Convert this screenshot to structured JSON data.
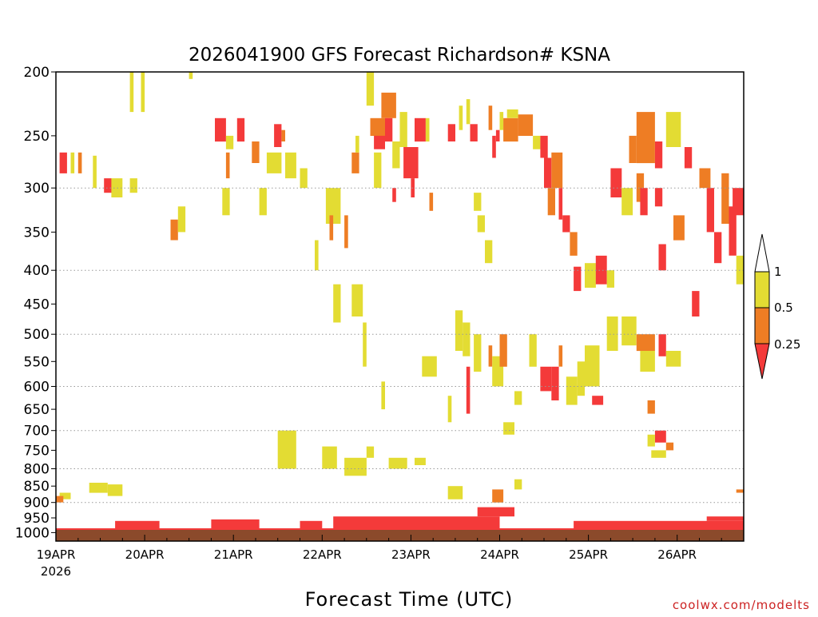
{
  "chart_data": {
    "type": "heatmap",
    "title": "2026041900 GFS Forecast Richardson# KSNA",
    "xlabel": "Forecast Time (UTC)",
    "ylabel": "",
    "credit": "coolwx.com/modelts",
    "y_scale": "log",
    "ylim": [
      1030,
      200
    ],
    "y_ticks": [
      200,
      250,
      300,
      350,
      400,
      450,
      500,
      550,
      600,
      650,
      700,
      750,
      800,
      850,
      900,
      950,
      1000
    ],
    "y_gridlines": [
      300,
      400,
      500,
      600,
      700,
      800,
      900
    ],
    "xlim": [
      "2026-04-19 00Z",
      "2026-04-26 18Z"
    ],
    "x_ticks": [
      {
        "label": "19APR",
        "sublabel": "2026",
        "hour": 0
      },
      {
        "label": "20APR",
        "hour": 24
      },
      {
        "label": "21APR",
        "hour": 48
      },
      {
        "label": "22APR",
        "hour": 72
      },
      {
        "label": "23APR",
        "hour": 96
      },
      {
        "label": "24APR",
        "hour": 120
      },
      {
        "label": "25APR",
        "hour": 144
      },
      {
        "label": "26APR",
        "hour": 168
      }
    ],
    "x_hours_max": 186,
    "colorbar": {
      "labels": [
        "1",
        "0.5",
        "0.25"
      ],
      "bins": [
        {
          "range": "0.5-1",
          "color": "#e3dc33"
        },
        {
          "range": "0.25-0.5",
          "color": "#ee7d24"
        },
        {
          "range": "<0.25",
          "color": "#f43a3a"
        }
      ]
    },
    "colors": {
      "yellow": "#e3dc33",
      "orange": "#ee7d24",
      "red": "#f43a3a",
      "ground": "#8b4a2b"
    },
    "cells": [
      {
        "h0": 1,
        "h1": 3,
        "p0": 265,
        "p1": 285,
        "c": "red"
      },
      {
        "h0": 4,
        "h1": 5,
        "p0": 265,
        "p1": 285,
        "c": "yellow"
      },
      {
        "h0": 6,
        "h1": 7,
        "p0": 265,
        "p1": 285,
        "c": "orange"
      },
      {
        "h0": 10,
        "h1": 11,
        "p0": 268,
        "p1": 300,
        "c": "yellow"
      },
      {
        "h0": 13,
        "h1": 15,
        "p0": 290,
        "p1": 305,
        "c": "red"
      },
      {
        "h0": 15,
        "h1": 18,
        "p0": 290,
        "p1": 310,
        "c": "yellow"
      },
      {
        "h0": 20,
        "h1": 22,
        "p0": 290,
        "p1": 305,
        "c": "yellow"
      },
      {
        "h0": 20,
        "h1": 21,
        "p0": 200,
        "p1": 230,
        "c": "yellow"
      },
      {
        "h0": 23,
        "h1": 24,
        "p0": 200,
        "p1": 230,
        "c": "yellow"
      },
      {
        "h0": 31,
        "h1": 33,
        "p0": 335,
        "p1": 360,
        "c": "orange"
      },
      {
        "h0": 33,
        "h1": 35,
        "p0": 320,
        "p1": 350,
        "c": "yellow"
      },
      {
        "h0": 36,
        "h1": 37,
        "p0": 200,
        "p1": 205,
        "c": "yellow"
      },
      {
        "h0": 43,
        "h1": 46,
        "p0": 235,
        "p1": 255,
        "c": "red"
      },
      {
        "h0": 46,
        "h1": 48,
        "p0": 250,
        "p1": 262,
        "c": "yellow"
      },
      {
        "h0": 46,
        "h1": 47,
        "p0": 265,
        "p1": 290,
        "c": "orange"
      },
      {
        "h0": 49,
        "h1": 51,
        "p0": 235,
        "p1": 255,
        "c": "red"
      },
      {
        "h0": 53,
        "h1": 55,
        "p0": 255,
        "p1": 275,
        "c": "orange"
      },
      {
        "h0": 57,
        "h1": 61,
        "p0": 265,
        "p1": 285,
        "c": "yellow"
      },
      {
        "h0": 59,
        "h1": 61,
        "p0": 240,
        "p1": 260,
        "c": "red"
      },
      {
        "h0": 61,
        "h1": 62,
        "p0": 245,
        "p1": 255,
        "c": "orange"
      },
      {
        "h0": 62,
        "h1": 65,
        "p0": 265,
        "p1": 290,
        "c": "yellow"
      },
      {
        "h0": 66,
        "h1": 68,
        "p0": 280,
        "p1": 300,
        "c": "yellow"
      },
      {
        "h0": 73,
        "h1": 77,
        "p0": 300,
        "p1": 340,
        "c": "yellow"
      },
      {
        "h0": 74,
        "h1": 75,
        "p0": 330,
        "p1": 360,
        "c": "orange"
      },
      {
        "h0": 78,
        "h1": 79,
        "p0": 330,
        "p1": 370,
        "c": "orange"
      },
      {
        "h0": 80,
        "h1": 82,
        "p0": 265,
        "p1": 285,
        "c": "orange"
      },
      {
        "h0": 81,
        "h1": 82,
        "p0": 250,
        "p1": 265,
        "c": "yellow"
      },
      {
        "h0": 84,
        "h1": 86,
        "p0": 200,
        "p1": 225,
        "c": "yellow"
      },
      {
        "h0": 85,
        "h1": 89,
        "p0": 235,
        "p1": 250,
        "c": "orange"
      },
      {
        "h0": 86,
        "h1": 89,
        "p0": 250,
        "p1": 262,
        "c": "red"
      },
      {
        "h0": 86,
        "h1": 88,
        "p0": 265,
        "p1": 300,
        "c": "yellow"
      },
      {
        "h0": 88,
        "h1": 92,
        "p0": 215,
        "p1": 235,
        "c": "orange"
      },
      {
        "h0": 89,
        "h1": 91,
        "p0": 235,
        "p1": 255,
        "c": "red"
      },
      {
        "h0": 91,
        "h1": 93,
        "p0": 255,
        "p1": 280,
        "c": "yellow"
      },
      {
        "h0": 91,
        "h1": 92,
        "p0": 300,
        "p1": 315,
        "c": "red"
      },
      {
        "h0": 93,
        "h1": 95,
        "p0": 230,
        "p1": 260,
        "c": "yellow"
      },
      {
        "h0": 94,
        "h1": 98,
        "p0": 260,
        "p1": 290,
        "c": "red"
      },
      {
        "h0": 96,
        "h1": 97,
        "p0": 290,
        "p1": 310,
        "c": "red"
      },
      {
        "h0": 97,
        "h1": 100,
        "p0": 235,
        "p1": 255,
        "c": "red"
      },
      {
        "h0": 100,
        "h1": 101,
        "p0": 235,
        "p1": 255,
        "c": "yellow"
      },
      {
        "h0": 101,
        "h1": 102,
        "p0": 305,
        "p1": 325,
        "c": "orange"
      },
      {
        "h0": 106,
        "h1": 108,
        "p0": 240,
        "p1": 255,
        "c": "red"
      },
      {
        "h0": 109,
        "h1": 110,
        "p0": 225,
        "p1": 245,
        "c": "yellow"
      },
      {
        "h0": 111,
        "h1": 112,
        "p0": 220,
        "p1": 240,
        "c": "yellow"
      },
      {
        "h0": 112,
        "h1": 114,
        "p0": 240,
        "p1": 255,
        "c": "red"
      },
      {
        "h0": 113,
        "h1": 115,
        "p0": 305,
        "p1": 325,
        "c": "yellow"
      },
      {
        "h0": 114,
        "h1": 116,
        "p0": 330,
        "p1": 350,
        "c": "yellow"
      },
      {
        "h0": 116,
        "h1": 118,
        "p0": 360,
        "p1": 390,
        "c": "yellow"
      },
      {
        "h0": 117,
        "h1": 118,
        "p0": 225,
        "p1": 245,
        "c": "orange"
      },
      {
        "h0": 118,
        "h1": 119,
        "p0": 250,
        "p1": 270,
        "c": "red"
      },
      {
        "h0": 119,
        "h1": 120,
        "p0": 245,
        "p1": 255,
        "c": "red"
      },
      {
        "h0": 120,
        "h1": 121,
        "p0": 230,
        "p1": 245,
        "c": "yellow"
      },
      {
        "h0": 121,
        "h1": 125,
        "p0": 235,
        "p1": 255,
        "c": "orange"
      },
      {
        "h0": 122,
        "h1": 125,
        "p0": 228,
        "p1": 235,
        "c": "yellow"
      },
      {
        "h0": 125,
        "h1": 129,
        "p0": 232,
        "p1": 250,
        "c": "orange"
      },
      {
        "h0": 129,
        "h1": 131,
        "p0": 250,
        "p1": 262,
        "c": "yellow"
      },
      {
        "h0": 131,
        "h1": 133,
        "p0": 250,
        "p1": 270,
        "c": "red"
      },
      {
        "h0": 132,
        "h1": 134,
        "p0": 270,
        "p1": 300,
        "c": "red"
      },
      {
        "h0": 133,
        "h1": 135,
        "p0": 300,
        "p1": 330,
        "c": "orange"
      },
      {
        "h0": 134,
        "h1": 137,
        "p0": 265,
        "p1": 300,
        "c": "orange"
      },
      {
        "h0": 136,
        "h1": 137,
        "p0": 300,
        "p1": 335,
        "c": "red"
      },
      {
        "h0": 137,
        "h1": 139,
        "p0": 330,
        "p1": 350,
        "c": "red"
      },
      {
        "h0": 139,
        "h1": 141,
        "p0": 350,
        "p1": 380,
        "c": "orange"
      },
      {
        "h0": 140,
        "h1": 142,
        "p0": 395,
        "p1": 430,
        "c": "red"
      },
      {
        "h0": 143,
        "h1": 146,
        "p0": 390,
        "p1": 425,
        "c": "yellow"
      },
      {
        "h0": 146,
        "h1": 149,
        "p0": 380,
        "p1": 420,
        "c": "red"
      },
      {
        "h0": 149,
        "h1": 151,
        "p0": 400,
        "p1": 425,
        "c": "yellow"
      },
      {
        "h0": 150,
        "h1": 153,
        "p0": 280,
        "p1": 310,
        "c": "red"
      },
      {
        "h0": 153,
        "h1": 156,
        "p0": 300,
        "p1": 330,
        "c": "yellow"
      },
      {
        "h0": 155,
        "h1": 157,
        "p0": 250,
        "p1": 275,
        "c": "orange"
      },
      {
        "h0": 157,
        "h1": 162,
        "p0": 230,
        "p1": 275,
        "c": "orange"
      },
      {
        "h0": 157,
        "h1": 159,
        "p0": 285,
        "p1": 315,
        "c": "orange"
      },
      {
        "h0": 158,
        "h1": 160,
        "p0": 300,
        "p1": 330,
        "c": "red"
      },
      {
        "h0": 162,
        "h1": 164,
        "p0": 255,
        "p1": 280,
        "c": "red"
      },
      {
        "h0": 162,
        "h1": 164,
        "p0": 300,
        "p1": 320,
        "c": "red"
      },
      {
        "h0": 163,
        "h1": 165,
        "p0": 365,
        "p1": 400,
        "c": "red"
      },
      {
        "h0": 165,
        "h1": 169,
        "p0": 230,
        "p1": 260,
        "c": "yellow"
      },
      {
        "h0": 167,
        "h1": 170,
        "p0": 330,
        "p1": 360,
        "c": "orange"
      },
      {
        "h0": 170,
        "h1": 172,
        "p0": 260,
        "p1": 280,
        "c": "red"
      },
      {
        "h0": 172,
        "h1": 174,
        "p0": 430,
        "p1": 470,
        "c": "red"
      },
      {
        "h0": 174,
        "h1": 177,
        "p0": 280,
        "p1": 300,
        "c": "orange"
      },
      {
        "h0": 176,
        "h1": 178,
        "p0": 300,
        "p1": 350,
        "c": "red"
      },
      {
        "h0": 178,
        "h1": 180,
        "p0": 350,
        "p1": 390,
        "c": "red"
      },
      {
        "h0": 180,
        "h1": 182,
        "p0": 285,
        "p1": 340,
        "c": "orange"
      },
      {
        "h0": 182,
        "h1": 184,
        "p0": 320,
        "p1": 380,
        "c": "red"
      },
      {
        "h0": 184,
        "h1": 186,
        "p0": 380,
        "p1": 420,
        "c": "yellow"
      },
      {
        "h0": 183,
        "h1": 186,
        "p0": 300,
        "p1": 330,
        "c": "red"
      },
      {
        "h0": 45,
        "h1": 47,
        "p0": 300,
        "p1": 330,
        "c": "yellow"
      },
      {
        "h0": 55,
        "h1": 57,
        "p0": 300,
        "p1": 330,
        "c": "yellow"
      },
      {
        "h0": 70,
        "h1": 71,
        "p0": 360,
        "p1": 400,
        "c": "yellow"
      },
      {
        "h0": 75,
        "h1": 77,
        "p0": 420,
        "p1": 480,
        "c": "yellow"
      },
      {
        "h0": 80,
        "h1": 83,
        "p0": 420,
        "p1": 470,
        "c": "yellow"
      },
      {
        "h0": 83,
        "h1": 84,
        "p0": 480,
        "p1": 560,
        "c": "yellow"
      },
      {
        "h0": 88,
        "h1": 89,
        "p0": 590,
        "p1": 650,
        "c": "yellow"
      },
      {
        "h0": 99,
        "h1": 103,
        "p0": 540,
        "p1": 580,
        "c": "yellow"
      },
      {
        "h0": 106,
        "h1": 107,
        "p0": 620,
        "p1": 680,
        "c": "yellow"
      },
      {
        "h0": 108,
        "h1": 110,
        "p0": 460,
        "p1": 530,
        "c": "yellow"
      },
      {
        "h0": 110,
        "h1": 112,
        "p0": 480,
        "p1": 540,
        "c": "yellow"
      },
      {
        "h0": 111,
        "h1": 112,
        "p0": 560,
        "p1": 660,
        "c": "red"
      },
      {
        "h0": 113,
        "h1": 115,
        "p0": 500,
        "p1": 570,
        "c": "yellow"
      },
      {
        "h0": 117,
        "h1": 118,
        "p0": 520,
        "p1": 560,
        "c": "orange"
      },
      {
        "h0": 118,
        "h1": 121,
        "p0": 540,
        "p1": 600,
        "c": "yellow"
      },
      {
        "h0": 120,
        "h1": 122,
        "p0": 500,
        "p1": 560,
        "c": "orange"
      },
      {
        "h0": 121,
        "h1": 124,
        "p0": 680,
        "p1": 710,
        "c": "yellow"
      },
      {
        "h0": 124,
        "h1": 126,
        "p0": 610,
        "p1": 640,
        "c": "yellow"
      },
      {
        "h0": 128,
        "h1": 130,
        "p0": 500,
        "p1": 560,
        "c": "yellow"
      },
      {
        "h0": 131,
        "h1": 134,
        "p0": 560,
        "p1": 610,
        "c": "red"
      },
      {
        "h0": 134,
        "h1": 136,
        "p0": 560,
        "p1": 630,
        "c": "red"
      },
      {
        "h0": 136,
        "h1": 137,
        "p0": 520,
        "p1": 560,
        "c": "orange"
      },
      {
        "h0": 138,
        "h1": 141,
        "p0": 580,
        "p1": 640,
        "c": "yellow"
      },
      {
        "h0": 141,
        "h1": 143,
        "p0": 550,
        "p1": 620,
        "c": "yellow"
      },
      {
        "h0": 143,
        "h1": 147,
        "p0": 520,
        "p1": 600,
        "c": "yellow"
      },
      {
        "h0": 145,
        "h1": 148,
        "p0": 620,
        "p1": 640,
        "c": "red"
      },
      {
        "h0": 149,
        "h1": 152,
        "p0": 470,
        "p1": 530,
        "c": "yellow"
      },
      {
        "h0": 153,
        "h1": 157,
        "p0": 470,
        "p1": 520,
        "c": "yellow"
      },
      {
        "h0": 157,
        "h1": 162,
        "p0": 500,
        "p1": 530,
        "c": "orange"
      },
      {
        "h0": 158,
        "h1": 162,
        "p0": 530,
        "p1": 570,
        "c": "yellow"
      },
      {
        "h0": 163,
        "h1": 165,
        "p0": 500,
        "p1": 540,
        "c": "red"
      },
      {
        "h0": 165,
        "h1": 169,
        "p0": 530,
        "p1": 560,
        "c": "yellow"
      },
      {
        "h0": 160,
        "h1": 162,
        "p0": 630,
        "p1": 660,
        "c": "orange"
      },
      {
        "h0": 162,
        "h1": 165,
        "p0": 700,
        "p1": 730,
        "c": "red"
      },
      {
        "h0": 160,
        "h1": 162,
        "p0": 710,
        "p1": 740,
        "c": "yellow"
      },
      {
        "h0": 165,
        "h1": 167,
        "p0": 730,
        "p1": 750,
        "c": "orange"
      },
      {
        "h0": 161,
        "h1": 165,
        "p0": 750,
        "p1": 770,
        "c": "yellow"
      },
      {
        "h0": 1,
        "h1": 4,
        "p0": 870,
        "p1": 890,
        "c": "yellow"
      },
      {
        "h0": 0,
        "h1": 2,
        "p0": 880,
        "p1": 900,
        "c": "orange"
      },
      {
        "h0": 9,
        "h1": 14,
        "p0": 840,
        "p1": 870,
        "c": "yellow"
      },
      {
        "h0": 14,
        "h1": 18,
        "p0": 845,
        "p1": 880,
        "c": "yellow"
      },
      {
        "h0": 60,
        "h1": 65,
        "p0": 700,
        "p1": 800,
        "c": "yellow"
      },
      {
        "h0": 72,
        "h1": 76,
        "p0": 740,
        "p1": 800,
        "c": "yellow"
      },
      {
        "h0": 78,
        "h1": 84,
        "p0": 770,
        "p1": 820,
        "c": "yellow"
      },
      {
        "h0": 84,
        "h1": 86,
        "p0": 740,
        "p1": 770,
        "c": "yellow"
      },
      {
        "h0": 90,
        "h1": 95,
        "p0": 770,
        "p1": 800,
        "c": "yellow"
      },
      {
        "h0": 97,
        "h1": 100,
        "p0": 770,
        "p1": 790,
        "c": "yellow"
      },
      {
        "h0": 106,
        "h1": 110,
        "p0": 850,
        "p1": 890,
        "c": "yellow"
      },
      {
        "h0": 118,
        "h1": 121,
        "p0": 860,
        "p1": 900,
        "c": "orange"
      },
      {
        "h0": 124,
        "h1": 126,
        "p0": 830,
        "p1": 860,
        "c": "yellow"
      },
      {
        "h0": 184,
        "h1": 186,
        "p0": 860,
        "p1": 870,
        "c": "orange"
      },
      {
        "h0": 0,
        "h1": 186,
        "p0": 985,
        "p1": 1012,
        "c": "red"
      },
      {
        "h0": 16,
        "h1": 28,
        "p0": 960,
        "p1": 985,
        "c": "red"
      },
      {
        "h0": 42,
        "h1": 55,
        "p0": 955,
        "p1": 985,
        "c": "red"
      },
      {
        "h0": 66,
        "h1": 72,
        "p0": 960,
        "p1": 985,
        "c": "red"
      },
      {
        "h0": 75,
        "h1": 120,
        "p0": 945,
        "p1": 985,
        "c": "red"
      },
      {
        "h0": 114,
        "h1": 124,
        "p0": 915,
        "p1": 945,
        "c": "red"
      },
      {
        "h0": 140,
        "h1": 186,
        "p0": 960,
        "p1": 985,
        "c": "red"
      },
      {
        "h0": 176,
        "h1": 186,
        "p0": 945,
        "p1": 960,
        "c": "red"
      }
    ]
  }
}
